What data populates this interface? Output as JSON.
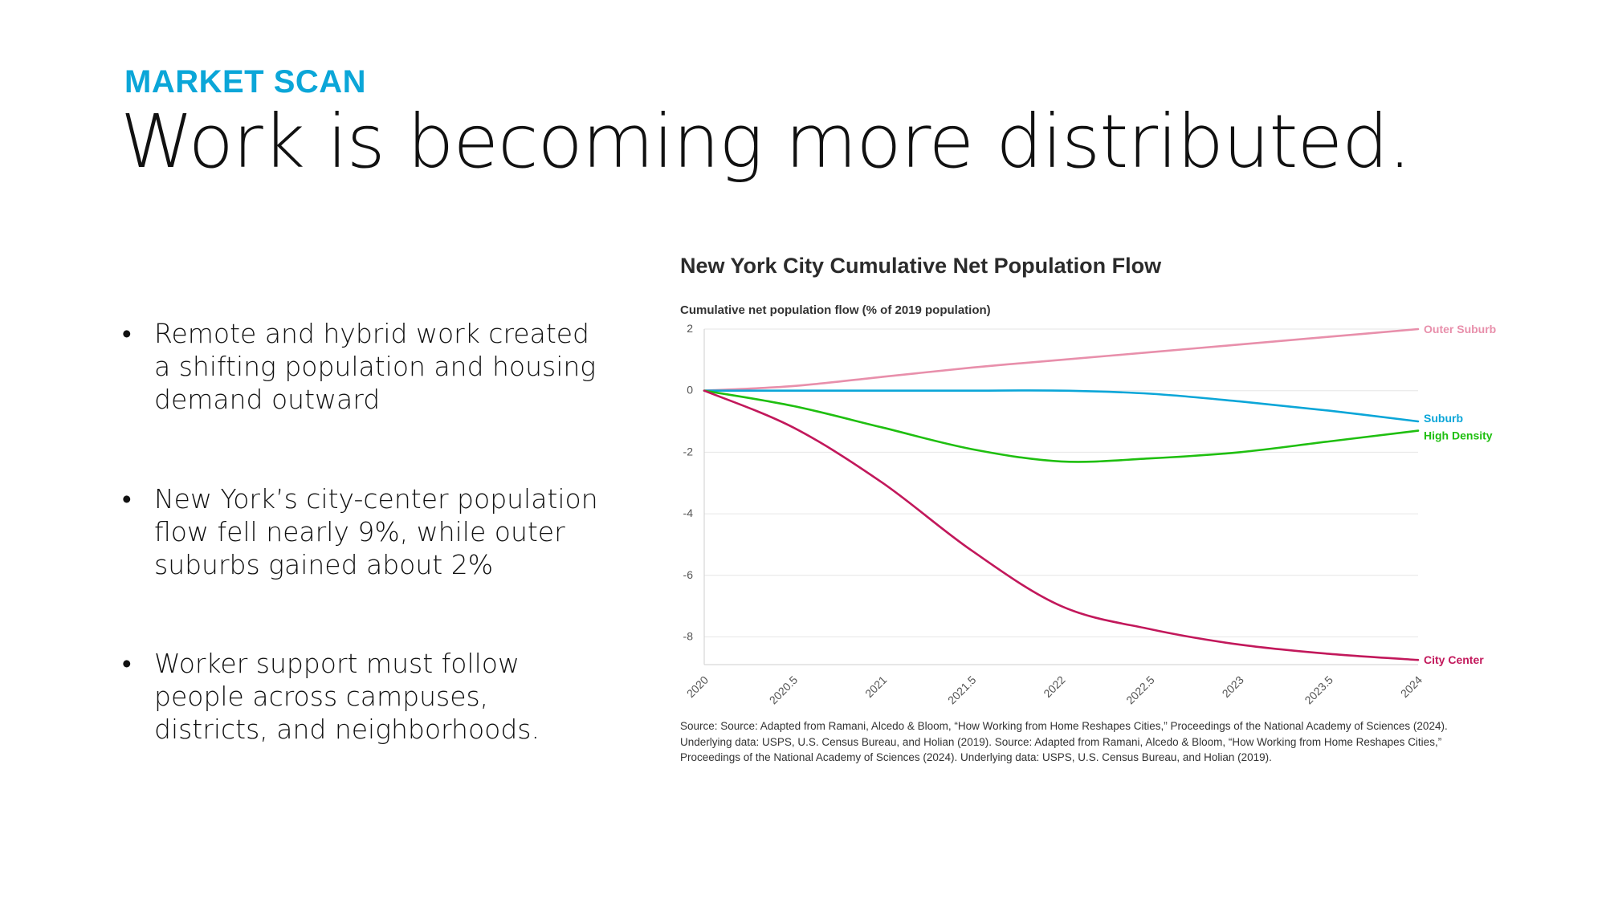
{
  "slide": {
    "eyebrow": "MARKET SCAN",
    "headline": "Work is becoming more distributed.",
    "bullets": [
      "Remote and hybrid work created a shifting population and housing demand outward",
      "New York’s city-center population flow fell nearly 9%, while outer suburbs gained about 2%",
      "Worker support must follow people across campuses, districts, and neighborhoods."
    ],
    "source": "Source: Source: Adapted from Ramani, Alcedo & Bloom, “How Working from Home Reshapes Cities,” Proceedings of the National Academy of Sciences (2024). Underlying data: USPS, U.S. Census Bureau, and Holian (2019). Source: Adapted from Ramani, Alcedo & Bloom, “How Working from Home Reshapes Cities,” Proceedings of the National Academy of Sciences (2024). Underlying data: USPS, U.S. Census Bureau, and Holian (2019)."
  },
  "chart_data": {
    "type": "line",
    "title": "New York City Cumulative Net Population Flow",
    "ylabel": "Cumulative net population flow (% of 2019 population)",
    "xlabel": "",
    "ylim": [
      -8.9,
      2
    ],
    "xlim": [
      2020,
      2024
    ],
    "x_ticks": [
      "2020",
      "2020.5",
      "2021",
      "2021.5",
      "2022",
      "2022.5",
      "2023",
      "2023.5",
      "2024"
    ],
    "y_ticks": [
      "2",
      "0",
      "-2",
      "-4",
      "-6",
      "-8"
    ],
    "y_tick_values": [
      2,
      0,
      -2,
      -4,
      -6,
      -8
    ],
    "grid": "horizontal",
    "legend": "direct labels at line ends (right)",
    "series": [
      {
        "name": "Outer Suburb",
        "color": "#e88fab",
        "points": [
          [
            2020,
            0
          ],
          [
            2020.5,
            0.15
          ],
          [
            2021,
            0.45
          ],
          [
            2021.5,
            0.75
          ],
          [
            2022,
            1.0
          ],
          [
            2022.5,
            1.25
          ],
          [
            2023,
            1.5
          ],
          [
            2023.5,
            1.75
          ],
          [
            2024,
            2.0
          ]
        ]
      },
      {
        "name": "Suburb",
        "color": "#0ba6d8",
        "points": [
          [
            2020,
            0
          ],
          [
            2020.5,
            0
          ],
          [
            2021,
            0
          ],
          [
            2021.5,
            0
          ],
          [
            2022,
            0
          ],
          [
            2022.5,
            -0.1
          ],
          [
            2023,
            -0.35
          ],
          [
            2023.5,
            -0.65
          ],
          [
            2024,
            -1.0
          ]
        ]
      },
      {
        "name": "High Density",
        "color": "#1fbf10",
        "points": [
          [
            2020,
            0
          ],
          [
            2020.5,
            -0.5
          ],
          [
            2021,
            -1.2
          ],
          [
            2021.5,
            -1.9
          ],
          [
            2022,
            -2.3
          ],
          [
            2022.5,
            -2.2
          ],
          [
            2023,
            -2.0
          ],
          [
            2023.5,
            -1.65
          ],
          [
            2024,
            -1.3
          ]
        ]
      },
      {
        "name": "City Center",
        "color": "#c2185b",
        "points": [
          [
            2020,
            0
          ],
          [
            2020.5,
            -1.2
          ],
          [
            2021,
            -3.0
          ],
          [
            2021.5,
            -5.2
          ],
          [
            2022,
            -7.0
          ],
          [
            2022.5,
            -7.75
          ],
          [
            2023,
            -8.25
          ],
          [
            2023.5,
            -8.55
          ],
          [
            2024,
            -8.75
          ]
        ]
      }
    ]
  }
}
